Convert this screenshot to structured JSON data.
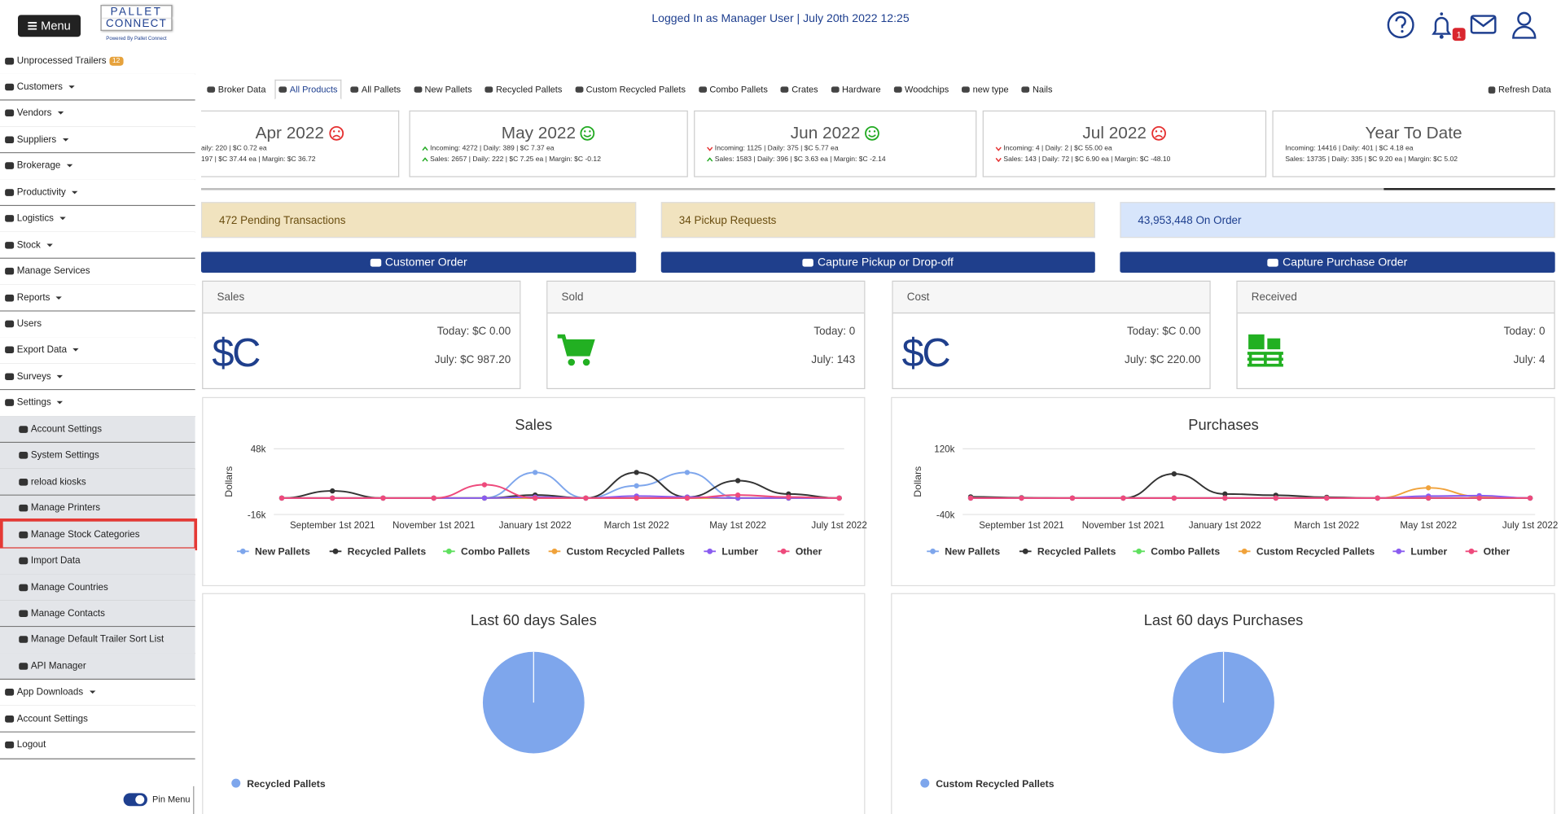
{
  "header": {
    "menu": "Menu",
    "logo_top": "PALLET",
    "logo_bottom": "CONNECT",
    "logo_tagline": "Powered By Pallet Connect",
    "status": "Logged In as Manager User | July 20th 2022 12:25",
    "notifications": "1"
  },
  "sidebar": {
    "items": [
      {
        "label": "Unprocessed Trailers",
        "badge": "12"
      },
      {
        "label": "Customers",
        "dropdown": true
      },
      {
        "label": "Vendors",
        "dropdown": true
      },
      {
        "label": "Suppliers",
        "dropdown": true
      },
      {
        "label": "Brokerage",
        "dropdown": true
      },
      {
        "label": "Productivity",
        "dropdown": true
      },
      {
        "label": "Logistics",
        "dropdown": true
      },
      {
        "label": "Stock",
        "dropdown": true
      },
      {
        "label": "Manage Services"
      },
      {
        "label": "Reports",
        "dropdown": true
      },
      {
        "label": "Users"
      },
      {
        "label": "Export Data",
        "dropdown": true
      },
      {
        "label": "Surveys",
        "dropdown": true
      },
      {
        "label": "Settings",
        "dropdown": true
      },
      {
        "label": "Account Settings",
        "sub": true
      },
      {
        "label": "System Settings",
        "sub": true
      },
      {
        "label": "reload kiosks",
        "sub": true
      },
      {
        "label": "Manage Printers",
        "sub": true
      },
      {
        "label": "Manage Stock Categories",
        "sub": true,
        "selected": true
      },
      {
        "label": "Import Data",
        "sub": true
      },
      {
        "label": "Manage Countries",
        "sub": true
      },
      {
        "label": "Manage Contacts",
        "sub": true
      },
      {
        "label": "Manage Default Trailer Sort List",
        "sub": true
      },
      {
        "label": "API Manager",
        "sub": true
      },
      {
        "label": "App Downloads",
        "dropdown": true
      },
      {
        "label": "Account Settings"
      },
      {
        "label": "Logout"
      }
    ],
    "pin": "Pin Menu"
  },
  "tabs": {
    "items": [
      "Broker Data",
      "All Products",
      "All Pallets",
      "New Pallets",
      "Recycled Pallets",
      "Custom Recycled Pallets",
      "Combo Pallets",
      "Crates",
      "Hardware",
      "Woodchips",
      "new type",
      "Nails"
    ],
    "active": 1,
    "refresh": "Refresh Data"
  },
  "months": [
    {
      "title": "Apr 2022",
      "mood": "sad",
      "lines": [
        {
          "text": "aily: 220 | $C 0.72 ea"
        },
        {
          "text": "197 | $C 37.44 ea | Margin: $C 36.72"
        }
      ]
    },
    {
      "title": "May 2022",
      "mood": "happy",
      "lines": [
        {
          "text": "Incoming: 4272 | Daily: 389 | $C 7.37 ea",
          "trend": "up"
        },
        {
          "text": "Sales: 2657 | Daily: 222 | $C 7.25 ea | Margin: $C -0.12",
          "trend": "up"
        }
      ]
    },
    {
      "title": "Jun 2022",
      "mood": "happy",
      "lines": [
        {
          "text": "Incoming: 1125 | Daily: 375 | $C 5.77 ea",
          "trend": "down"
        },
        {
          "text": "Sales: 1583 | Daily: 396 | $C 3.63 ea | Margin: $C -2.14",
          "trend": "up"
        }
      ]
    },
    {
      "title": "Jul 2022",
      "mood": "sad",
      "lines": [
        {
          "text": "Incoming: 4 | Daily: 2 | $C 55.00 ea",
          "trend": "down"
        },
        {
          "text": "Sales: 143 | Daily: 72 | $C 6.90 ea | Margin: $C -48.10",
          "trend": "down"
        }
      ]
    },
    {
      "title": "Year To Date",
      "lines": [
        {
          "text": "Incoming: 14416 | Daily: 401 | $C 4.18 ea"
        },
        {
          "text": "Sales: 13735 | Daily: 335 | $C 9.20 ea | Margin: $C 5.02"
        }
      ]
    }
  ],
  "alerts": [
    "472 Pending Transactions",
    "34 Pickup Requests",
    "43,953,448 On Order"
  ],
  "actions": [
    "Customer Order",
    "Capture Pickup or Drop-off",
    "Capture Purchase Order"
  ],
  "stats": [
    {
      "title": "Sales",
      "icon": "$C",
      "today": "Today: $C 0.00",
      "month": "July: $C 987.20"
    },
    {
      "title": "Sold",
      "today": "Today: 0",
      "month": "July: 143"
    },
    {
      "title": "Cost",
      "icon": "$C",
      "today": "Today: $C 0.00",
      "month": "July: $C 220.00"
    },
    {
      "title": "Received",
      "today": "Today: 0",
      "month": "July: 4"
    }
  ],
  "chart_data": [
    {
      "type": "line",
      "title": "Sales",
      "ylabel": "Dollars",
      "categories": [
        null,
        "September 1st 2021",
        null,
        "November 1st 2021",
        null,
        "January 1st 2022",
        null,
        "March 1st 2022",
        null,
        "May 1st 2022",
        null,
        "July 1st 2022"
      ],
      "ylim": [
        -16000,
        48000
      ],
      "yticks": [
        {
          "value": 48000,
          "label": "48k"
        },
        {
          "value": -16000,
          "label": "-16k"
        }
      ],
      "grid": true,
      "series": [
        {
          "name": "New Pallets",
          "color": "#7ea6ec",
          "values": [
            0,
            0,
            0,
            0,
            0,
            25000,
            0,
            12000,
            25000,
            0,
            0,
            0
          ]
        },
        {
          "name": "Recycled Pallets",
          "color": "#333333",
          "values": [
            0,
            7000,
            0,
            0,
            0,
            3000,
            0,
            25000,
            1000,
            17000,
            4000,
            0
          ]
        },
        {
          "name": "Combo Pallets",
          "color": "#5fe05f",
          "values": [
            0,
            0,
            0,
            0,
            0,
            0,
            0,
            0,
            0,
            0,
            0,
            0
          ]
        },
        {
          "name": "Custom Recycled Pallets",
          "color": "#f0a23a",
          "values": [
            0,
            0,
            0,
            0,
            0,
            0,
            0,
            0,
            0,
            0,
            0,
            0
          ]
        },
        {
          "name": "Lumber",
          "color": "#8a5cf0",
          "values": [
            0,
            0,
            0,
            0,
            0,
            1000,
            0,
            2000,
            1000,
            0,
            0,
            0
          ]
        },
        {
          "name": "Other",
          "color": "#ee4a7c",
          "values": [
            0,
            0,
            0,
            0,
            13000,
            0,
            0,
            0,
            0,
            3000,
            1000,
            0
          ]
        }
      ]
    },
    {
      "type": "line",
      "title": "Purchases",
      "ylabel": "Dollars",
      "categories": [
        null,
        "September 1st 2021",
        null,
        "November 1st 2021",
        null,
        "January 1st 2022",
        null,
        "March 1st 2022",
        null,
        "May 1st 2022",
        null,
        "July 1st 2022"
      ],
      "ylim": [
        -40000,
        120000
      ],
      "yticks": [
        {
          "value": 120000,
          "label": "120k"
        },
        {
          "value": -40000,
          "label": "-40k"
        }
      ],
      "grid": true,
      "series": [
        {
          "name": "New Pallets",
          "color": "#7ea6ec",
          "values": [
            0,
            0,
            0,
            0,
            0,
            0,
            0,
            0,
            0,
            0,
            0,
            0
          ]
        },
        {
          "name": "Recycled Pallets",
          "color": "#333333",
          "values": [
            3000,
            1000,
            0,
            0,
            59000,
            10000,
            7000,
            2000,
            0,
            0,
            0,
            0
          ]
        },
        {
          "name": "Combo Pallets",
          "color": "#5fe05f",
          "values": [
            0,
            0,
            0,
            0,
            0,
            0,
            0,
            0,
            0,
            0,
            0,
            0
          ]
        },
        {
          "name": "Custom Recycled Pallets",
          "color": "#f0a23a",
          "values": [
            0,
            0,
            0,
            0,
            0,
            0,
            0,
            0,
            0,
            25000,
            4000,
            0
          ]
        },
        {
          "name": "Lumber",
          "color": "#8a5cf0",
          "values": [
            0,
            0,
            0,
            0,
            0,
            0,
            0,
            0,
            0,
            5000,
            6000,
            0
          ]
        },
        {
          "name": "Other",
          "color": "#ee4a7c",
          "values": [
            0,
            0,
            0,
            0,
            0,
            0,
            0,
            0,
            0,
            0,
            0,
            0
          ]
        }
      ]
    },
    {
      "type": "pie",
      "title": "Last 60 days Sales",
      "categories": [
        "Recycled Pallets"
      ],
      "values": [
        100
      ],
      "colors": [
        "#7ea6ec"
      ]
    },
    {
      "type": "pie",
      "title": "Last 60 days Purchases",
      "categories": [
        "Custom Recycled Pallets"
      ],
      "values": [
        100
      ],
      "colors": [
        "#7ea6ec"
      ]
    }
  ]
}
